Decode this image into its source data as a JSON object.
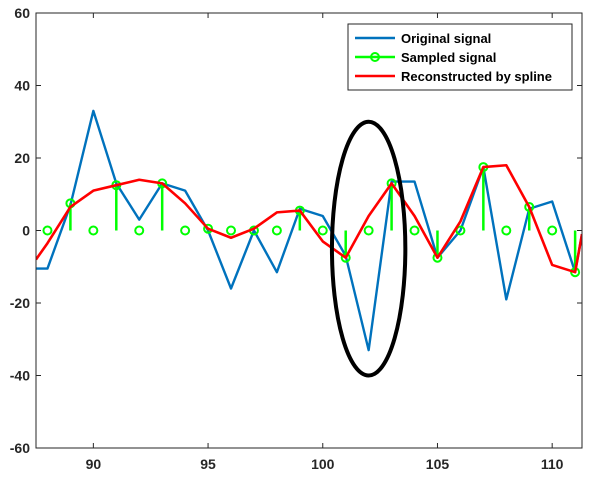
{
  "chart_data": {
    "type": "line",
    "xlim": [
      87.5,
      111.3
    ],
    "ylim": [
      -60,
      60
    ],
    "xticks": [
      90,
      95,
      100,
      105,
      110
    ],
    "yticks": [
      60,
      40,
      20,
      0,
      -20,
      -40,
      -60
    ],
    "grid": false,
    "legend_position": "top-right",
    "series": [
      {
        "name": "Original signal",
        "color": "#0072BD",
        "x": [
          87.5,
          88,
          89,
          90,
          91,
          92,
          93,
          94,
          95,
          96,
          97,
          98,
          99,
          100,
          101,
          102,
          103,
          104,
          105,
          106,
          107,
          108,
          109,
          110,
          111,
          111.3
        ],
        "y": [
          -10.5,
          -10.5,
          7,
          33,
          13,
          3,
          13,
          11,
          0,
          -16,
          0,
          -11.5,
          6,
          4,
          -7,
          -33,
          13.5,
          13.5,
          -7.5,
          0,
          17.5,
          -19,
          6,
          8,
          -11.5,
          -1
        ]
      },
      {
        "name": "Sampled signal",
        "color": "#00FF00",
        "marker": "circle",
        "style": "stem",
        "x": [
          88,
          89,
          90,
          91,
          92,
          93,
          94,
          95,
          96,
          97,
          98,
          99,
          100,
          101,
          102,
          103,
          104,
          105,
          106,
          107,
          108,
          109,
          110,
          111
        ],
        "y": [
          0,
          7.5,
          0,
          12.5,
          0,
          13,
          0,
          0.5,
          0,
          0,
          0,
          5.5,
          0,
          -7.5,
          0,
          13,
          0,
          -7.5,
          0,
          17.5,
          0,
          6.5,
          0,
          -11.5
        ]
      },
      {
        "name": "Reconstructed by spline",
        "color": "#FF0000",
        "x": [
          87.5,
          88,
          89,
          90,
          91,
          92,
          93,
          94,
          95,
          96,
          97,
          98,
          99,
          100,
          101,
          102,
          103,
          104,
          105,
          106,
          107,
          108,
          109,
          110,
          111,
          111.3
        ],
        "y": [
          -8,
          -3.5,
          6.5,
          11,
          12.5,
          14,
          13,
          7.5,
          0.5,
          -2,
          0.5,
          5,
          5.5,
          -3,
          -7.5,
          4,
          13,
          4,
          -7.5,
          2.5,
          17.5,
          18,
          6.5,
          -9.5,
          -11.5,
          -1
        ]
      }
    ],
    "annotations": [
      {
        "type": "ellipse",
        "cx": 102,
        "cy": -5,
        "rx": 1.6,
        "ry": 35,
        "color": "#000000"
      }
    ]
  }
}
